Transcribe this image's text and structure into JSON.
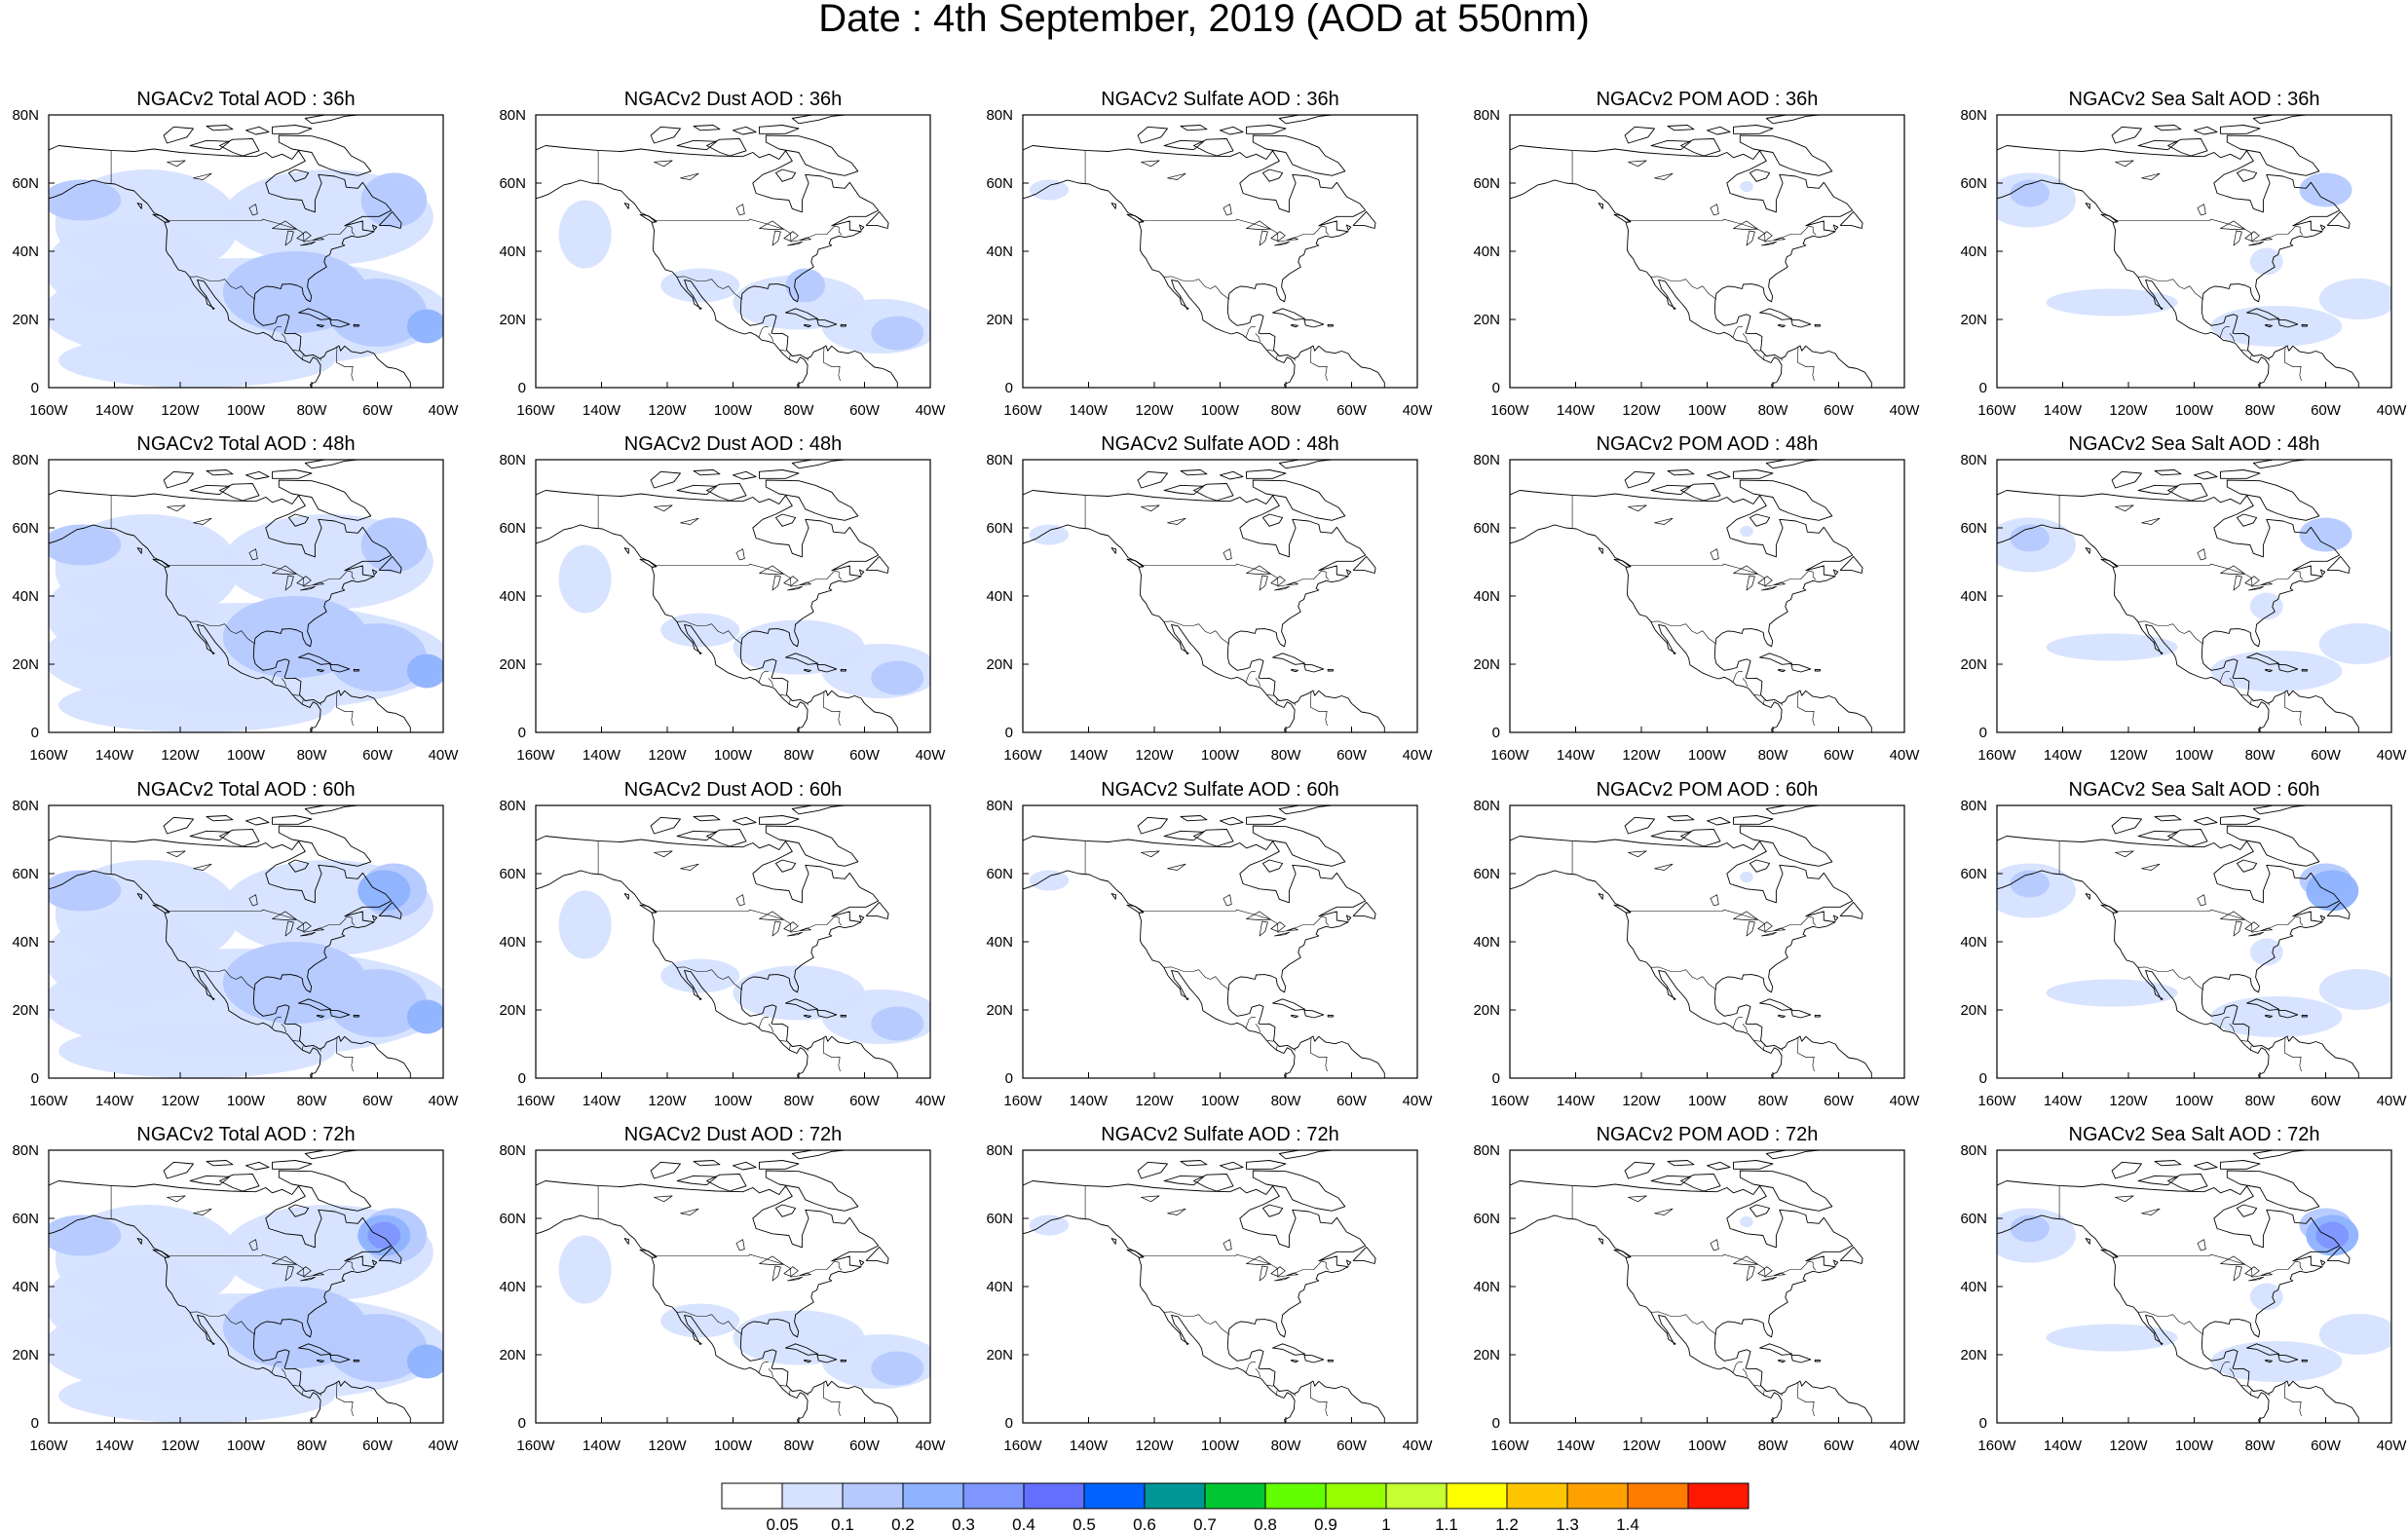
{
  "title": "Date : 4th September, 2019 (AOD at 550nm)",
  "panel_titles": [
    [
      "NGACv2 Total AOD : 36h",
      "NGACv2 Dust AOD : 36h",
      "NGACv2 Sulfate AOD : 36h",
      "NGACv2 POM AOD : 36h",
      "NGACv2 Sea Salt AOD : 36h"
    ],
    [
      "NGACv2 Total AOD : 48h",
      "NGACv2 Dust AOD : 48h",
      "NGACv2 Sulfate AOD : 48h",
      "NGACv2 POM AOD : 48h",
      "NGACv2 Sea Salt AOD : 48h"
    ],
    [
      "NGACv2 Total AOD : 60h",
      "NGACv2 Dust AOD : 60h",
      "NGACv2 Sulfate AOD : 60h",
      "NGACv2 POM AOD : 60h",
      "NGACv2 Sea Salt AOD : 60h"
    ],
    [
      "NGACv2 Total AOD : 72h",
      "NGACv2 Dust AOD : 72h",
      "NGACv2 Sulfate AOD : 72h",
      "NGACv2 POM AOD : 72h",
      "NGACv2 Sea Salt  AOD : 72h"
    ]
  ],
  "x_ticks": [
    "160W",
    "140W",
    "120W",
    "100W",
    "80W",
    "60W",
    "40W"
  ],
  "y_ticks": [
    "0",
    "20N",
    "40N",
    "60N",
    "80N"
  ],
  "colorbar": {
    "colors": [
      "#ffffff",
      "#d6e2ff",
      "#b5c9ff",
      "#8eb2ff",
      "#7f96ff",
      "#6370ff",
      "#0063ff",
      "#009696",
      "#00c633",
      "#63ff00",
      "#96ff00",
      "#c6ff33",
      "#ffff00",
      "#ffc600",
      "#ffa000",
      "#ff7c00",
      "#ff1900"
    ],
    "labels": [
      "0.05",
      "0.1",
      "0.2",
      "0.3",
      "0.4",
      "0.5",
      "0.6",
      "0.7",
      "0.8",
      "0.9",
      "1",
      "1.1",
      "1.2",
      "1.3",
      "1.4"
    ]
  }
}
